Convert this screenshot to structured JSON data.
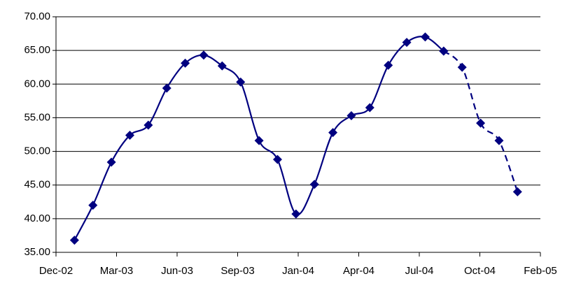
{
  "chart_data": {
    "type": "line",
    "x": [
      1,
      2,
      3,
      4,
      5,
      6,
      7,
      8,
      9,
      10,
      11,
      12,
      13,
      14,
      15,
      16,
      17,
      18,
      19,
      20,
      21,
      22,
      23,
      24,
      25
    ],
    "series": [
      {
        "color": "#000080",
        "dash": false,
        "values": [
          36.8,
          42.0,
          48.4,
          52.4,
          53.9,
          59.4,
          63.1,
          64.3,
          62.7,
          60.3,
          51.6,
          48.8,
          40.7,
          45.1,
          52.8,
          55.3,
          56.5,
          62.8,
          66.2,
          67.0,
          64.9,
          null,
          null,
          null,
          null
        ]
      },
      {
        "color": "#000080",
        "dash": true,
        "values": [
          null,
          null,
          null,
          null,
          null,
          null,
          null,
          null,
          null,
          null,
          null,
          null,
          null,
          null,
          null,
          null,
          null,
          null,
          null,
          null,
          64.9,
          62.5,
          54.2,
          51.6,
          44.0
        ]
      }
    ],
    "xlim": [
      0,
      26.24
    ],
    "xticks": [
      {
        "value": 0,
        "label": "Dec-02"
      },
      {
        "value": 3.28,
        "label": "Mar-03"
      },
      {
        "value": 6.56,
        "label": "Jun-03"
      },
      {
        "value": 9.84,
        "label": "Sep-03"
      },
      {
        "value": 13.12,
        "label": "Jan-04"
      },
      {
        "value": 16.4,
        "label": "Apr-04"
      },
      {
        "value": 19.68,
        "label": "Jul-04"
      },
      {
        "value": 22.96,
        "label": "Oct-04"
      },
      {
        "value": 26.24,
        "label": "Feb-05"
      }
    ],
    "ylim": [
      35,
      70
    ],
    "yticks": [
      {
        "value": 35,
        "label": "35.00"
      },
      {
        "value": 40,
        "label": "40.00"
      },
      {
        "value": 45,
        "label": "45.00"
      },
      {
        "value": 50,
        "label": "50.00"
      },
      {
        "value": 55,
        "label": "55.00"
      },
      {
        "value": 60,
        "label": "60.00"
      },
      {
        "value": 65,
        "label": "65.00"
      },
      {
        "value": 70,
        "label": "70.00"
      }
    ],
    "grid": true,
    "smooth": true,
    "marker": "diamond"
  }
}
